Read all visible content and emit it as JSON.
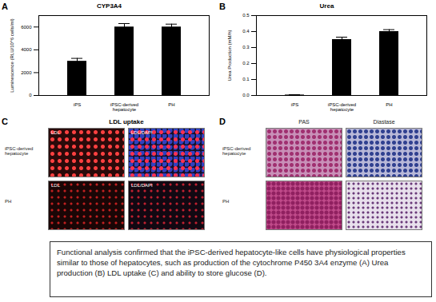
{
  "chart_data": [
    {
      "panel": "A",
      "type": "bar",
      "title": "CYP3A4",
      "y_label": "Luminescence (RLU/10^6 cells/ml)",
      "categories": [
        "iPS",
        "iPSC-derived hepatocyte",
        "PH"
      ],
      "values": [
        3000,
        6000,
        6000
      ],
      "errors": [
        250,
        300,
        250
      ],
      "color": "#000000",
      "ylim": [
        0,
        7000
      ],
      "yticks": [
        0,
        2000,
        4000,
        6000
      ]
    },
    {
      "panel": "B",
      "type": "bar",
      "title": "Urea",
      "y_label": "Urea Production (mM/h)",
      "categories": [
        "iPS",
        "iPSC-derived hepatocyte",
        "PH"
      ],
      "values": [
        0.003,
        0.35,
        0.4
      ],
      "errors": [
        0.002,
        0.015,
        0.012
      ],
      "color": "#000000",
      "ylim": [
        0,
        0.5
      ],
      "yticks": [
        {
          "value": 0,
          "label": "0.0"
        },
        0.1,
        0.2,
        0.3,
        0.4,
        0.5
      ]
    }
  ],
  "panels": [
    {
      "letter": "C",
      "title": "LDL uptake",
      "rows": [
        "iPSC-derived hepatocyte",
        "PH"
      ],
      "columns": [
        "LDL",
        "LDL/DAPI"
      ]
    },
    {
      "letter": "D",
      "rows": [
        "iPSC-derived hepatocyte",
        "PH"
      ],
      "columns": [
        "PAS",
        "Diastase"
      ]
    }
  ],
  "caption": "Functional analysis confirmed that the iPSC-derived hepatocyte-like cells have physiological properties similar to those of hepatocytes, such as production of the cytochrome P450 3A4 enzyme (A) Urea production (B) LDL uptake (C) and ability to store glucose (D)."
}
